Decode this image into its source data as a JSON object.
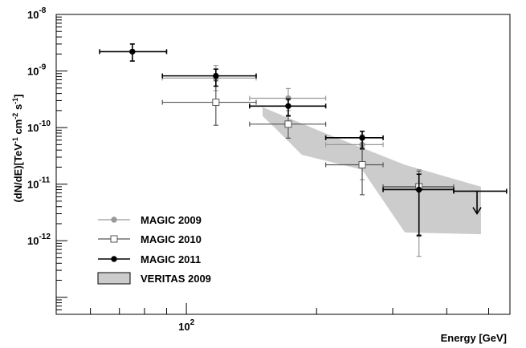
{
  "chart_data": {
    "type": "scatter",
    "x_scale": "log",
    "y_scale": "log",
    "xlim": [
      50,
      560
    ],
    "ylim": [
      5e-14,
      1e-08
    ],
    "xlabel": "Energy [GeV]",
    "ylabel": "(dN/dE)[TeV-1 cm-2 s-1]",
    "y_ticks": [
      {
        "value": 1e-08,
        "mantissa": "10",
        "exponent": "-8"
      },
      {
        "value": 1e-09,
        "mantissa": "10",
        "exponent": "-9"
      },
      {
        "value": 1e-10,
        "mantissa": "10",
        "exponent": "-10"
      },
      {
        "value": 1e-11,
        "mantissa": "10",
        "exponent": "-11"
      },
      {
        "value": 1e-12,
        "mantissa": "10",
        "exponent": "-12"
      }
    ],
    "x_ticks": [
      {
        "value": 100,
        "mantissa": "10",
        "exponent": "2"
      }
    ],
    "grid": false,
    "legend_position": "bottom-left",
    "series": [
      {
        "name": "MAGIC 2009",
        "marker": "filled-circle",
        "color": "#999999",
        "points": [
          {
            "x": 117,
            "xlo": 88,
            "xhi": 145,
            "y": 7.5e-10,
            "ylo": 4.5e-10,
            "yhi": 1.25e-09
          },
          {
            "x": 172,
            "xlo": 140,
            "xhi": 210,
            "y": 3.3e-10,
            "ylo": 2e-10,
            "yhi": 4.9e-10
          },
          {
            "x": 255,
            "xlo": 210,
            "xhi": 285,
            "y": 5e-11,
            "ylo": 1.2e-11,
            "yhi": 7.4e-11
          },
          {
            "x": 345,
            "xlo": 285,
            "xhi": 415,
            "y": 8.5e-12,
            "ylo": 5.3e-13,
            "yhi": 1.8e-11
          }
        ]
      },
      {
        "name": "MAGIC 2010",
        "marker": "open-square",
        "color": "#555555",
        "points": [
          {
            "x": 117,
            "xlo": 88,
            "xhi": 145,
            "y": 2.8e-10,
            "ylo": 1.1e-10,
            "yhi": 6.7e-10
          },
          {
            "x": 172,
            "xlo": 140,
            "xhi": 210,
            "y": 1.15e-10,
            "ylo": 6.5e-11,
            "yhi": 1.65e-10
          },
          {
            "x": 255,
            "xlo": 210,
            "xhi": 285,
            "y": 2.2e-11,
            "ylo": 6.5e-12,
            "yhi": 4.1e-11
          },
          {
            "x": 345,
            "xlo": 285,
            "xhi": 415,
            "y": 9e-12,
            "ylo": 1.2e-12,
            "yhi": 1.7e-11
          }
        ]
      },
      {
        "name": "MAGIC 2011",
        "marker": "filled-circle",
        "color": "#000000",
        "points": [
          {
            "x": 75,
            "xlo": 63,
            "xhi": 90,
            "y": 2.2e-09,
            "ylo": 1.5e-09,
            "yhi": 3e-09
          },
          {
            "x": 117,
            "xlo": 88,
            "xhi": 145,
            "y": 8.2e-10,
            "ylo": 5.4e-10,
            "yhi": 1.08e-09
          },
          {
            "x": 172,
            "xlo": 140,
            "xhi": 210,
            "y": 2.4e-10,
            "ylo": 1.6e-10,
            "yhi": 3.2e-10
          },
          {
            "x": 255,
            "xlo": 210,
            "xhi": 285,
            "y": 6.6e-11,
            "ylo": 4.3e-11,
            "yhi": 8.6e-11
          },
          {
            "x": 345,
            "xlo": 285,
            "xhi": 415,
            "y": 8e-12,
            "ylo": 1.25e-12,
            "yhi": 1.5e-11
          }
        ]
      }
    ],
    "upper_limits": [
      {
        "series": "MAGIC 2011",
        "x": 470,
        "xlo": 415,
        "xhi": 550,
        "y": 7.5e-12,
        "y_arrow_to": 3e-12
      }
    ],
    "band": {
      "name": "VERITAS 2009",
      "color": "#cccccc",
      "upper": [
        [
          150,
          2.3e-10
        ],
        [
          205,
          8.5e-11
        ],
        [
          320,
          2.2e-11
        ],
        [
          480,
          9e-12
        ]
      ],
      "lower": [
        [
          480,
          1.3e-12
        ],
        [
          320,
          1.4e-12
        ],
        [
          255,
          1.8e-11
        ],
        [
          185,
          3.3e-11
        ],
        [
          160,
          1e-10
        ],
        [
          150,
          1.6e-10
        ]
      ]
    }
  }
}
